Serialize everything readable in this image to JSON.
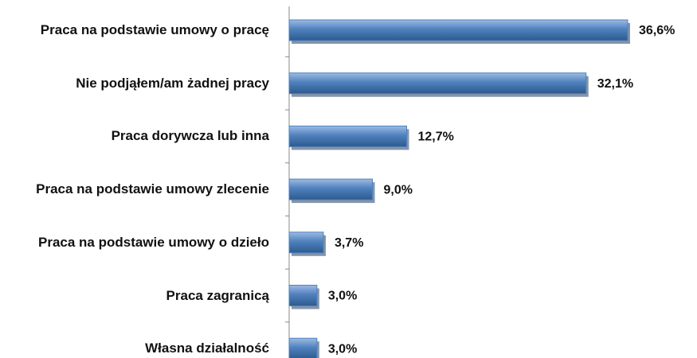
{
  "chart_data": {
    "type": "bar",
    "orientation": "horizontal",
    "categories": [
      "Praca na podstawie umowy o pracę",
      "Nie podjąłem/am żadnej pracy",
      "Praca dorywcza lub inna",
      "Praca na podstawie umowy zlecenie",
      "Praca na podstawie umowy o dzieło",
      "Praca zagranicą",
      "Własna działalność"
    ],
    "values": [
      36.6,
      32.1,
      12.7,
      9.0,
      3.7,
      3.0,
      3.0
    ],
    "value_labels": [
      "36,6%",
      "32,1%",
      "12,7%",
      "9,0%",
      "3,7%",
      "3,0%",
      "3,0%"
    ],
    "color": "#4f81bd"
  }
}
